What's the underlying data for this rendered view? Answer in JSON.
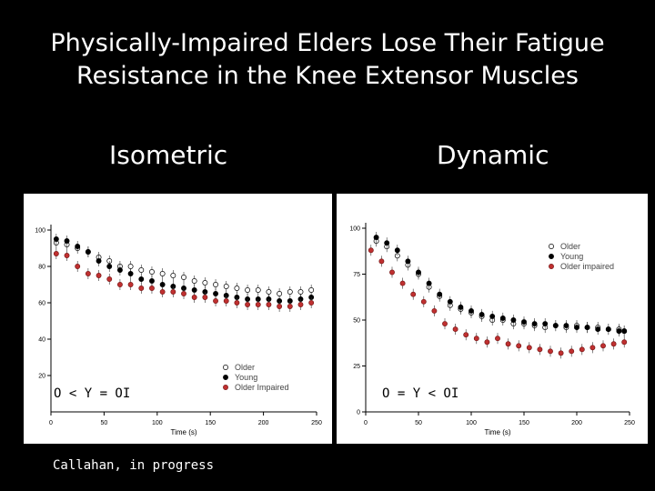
{
  "title_lines": [
    "Physically-Impaired Elders Lose Their Fatigue",
    "Resistance in the Knee Extensor Muscles"
  ],
  "panels": {
    "left_label": "Isometric",
    "right_label": "Dynamic",
    "left_comparison": "O < Y = OI",
    "right_comparison": "O = Y < OI"
  },
  "credit": "Callahan, in progress",
  "colors": {
    "older": "#ffffff",
    "young": "#000000",
    "impaired": "#c03030"
  },
  "chart_data": [
    {
      "type": "scatter",
      "name": "Isometric",
      "xlabel": "Time (s)",
      "ylabel": "",
      "xlim": [
        0,
        250
      ],
      "ylim": [
        0,
        100
      ],
      "xticks": [
        0,
        50,
        100,
        150,
        200,
        250
      ],
      "yticks": [
        20,
        40,
        60,
        80,
        100
      ],
      "legend": "bottom-right",
      "series": [
        {
          "name": "Older",
          "marker": "open",
          "x": [
            5,
            15,
            25,
            35,
            45,
            55,
            65,
            75,
            85,
            95,
            105,
            115,
            125,
            135,
            145,
            155,
            165,
            175,
            185,
            195,
            205,
            215,
            225,
            235,
            245
          ],
          "y": [
            93,
            92,
            90,
            88,
            85,
            83,
            80,
            80,
            78,
            77,
            76,
            75,
            74,
            72,
            71,
            70,
            69,
            68,
            67,
            67,
            66,
            65,
            66,
            66,
            67
          ]
        },
        {
          "name": "Young",
          "marker": "filled-black",
          "x": [
            5,
            15,
            25,
            35,
            45,
            55,
            65,
            75,
            85,
            95,
            105,
            115,
            125,
            135,
            145,
            155,
            165,
            175,
            185,
            195,
            205,
            215,
            225,
            235,
            245
          ],
          "y": [
            95,
            94,
            91,
            88,
            83,
            80,
            78,
            76,
            73,
            72,
            70,
            69,
            68,
            67,
            66,
            65,
            64,
            63,
            62,
            62,
            62,
            61,
            61,
            62,
            63
          ]
        },
        {
          "name": "Older Impaired",
          "marker": "filled-red",
          "x": [
            5,
            15,
            25,
            35,
            45,
            55,
            65,
            75,
            85,
            95,
            105,
            115,
            125,
            135,
            145,
            155,
            165,
            175,
            185,
            195,
            205,
            215,
            225,
            235,
            245
          ],
          "y": [
            87,
            86,
            80,
            76,
            75,
            73,
            70,
            70,
            68,
            68,
            66,
            66,
            65,
            63,
            63,
            61,
            61,
            60,
            59,
            59,
            59,
            58,
            58,
            59,
            60
          ]
        }
      ]
    },
    {
      "type": "scatter",
      "name": "Dynamic",
      "xlabel": "Time (s)",
      "ylabel": "",
      "xlim": [
        0,
        250
      ],
      "ylim": [
        0,
        100
      ],
      "xticks": [
        0,
        50,
        100,
        150,
        200,
        250
      ],
      "yticks": [
        0,
        25,
        50,
        75,
        100
      ],
      "legend": "top-right",
      "series": [
        {
          "name": "Older",
          "marker": "open",
          "x": [
            10,
            20,
            30,
            40,
            50,
            60,
            70,
            80,
            90,
            100,
            110,
            120,
            130,
            140,
            150,
            160,
            170,
            180,
            190,
            200,
            210,
            220,
            230,
            240,
            245
          ],
          "y": [
            93,
            90,
            85,
            80,
            75,
            68,
            63,
            58,
            56,
            54,
            52,
            50,
            50,
            48,
            48,
            47,
            46,
            47,
            46,
            47,
            46,
            46,
            45,
            45,
            44
          ]
        },
        {
          "name": "Young",
          "marker": "filled-black",
          "x": [
            10,
            20,
            30,
            40,
            50,
            60,
            70,
            80,
            90,
            100,
            110,
            120,
            130,
            140,
            150,
            160,
            170,
            180,
            190,
            200,
            210,
            220,
            230,
            240,
            245
          ],
          "y": [
            95,
            92,
            88,
            82,
            76,
            70,
            64,
            60,
            57,
            55,
            53,
            52,
            51,
            50,
            49,
            48,
            48,
            47,
            47,
            46,
            46,
            45,
            45,
            44,
            44
          ]
        },
        {
          "name": "Older impaired",
          "marker": "filled-red",
          "x": [
            5,
            15,
            25,
            35,
            45,
            55,
            65,
            75,
            85,
            95,
            105,
            115,
            125,
            135,
            145,
            155,
            165,
            175,
            185,
            195,
            205,
            215,
            225,
            235,
            245
          ],
          "y": [
            88,
            82,
            76,
            70,
            64,
            60,
            55,
            48,
            45,
            42,
            40,
            38,
            40,
            37,
            36,
            35,
            34,
            33,
            32,
            33,
            34,
            35,
            36,
            37,
            38
          ]
        }
      ]
    }
  ]
}
